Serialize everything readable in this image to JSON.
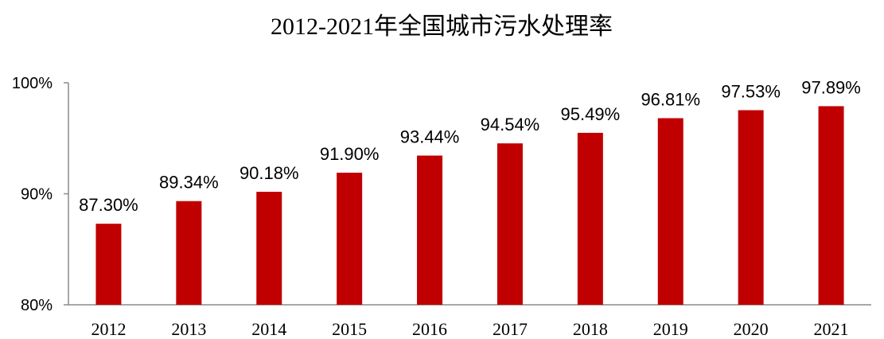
{
  "chart_data": {
    "type": "bar",
    "title": "2012-2021年全国城市污水处理率",
    "categories": [
      "2012",
      "2013",
      "2014",
      "2015",
      "2016",
      "2017",
      "2018",
      "2019",
      "2020",
      "2021"
    ],
    "values": [
      87.3,
      89.34,
      90.18,
      91.9,
      93.44,
      94.54,
      95.49,
      96.81,
      97.53,
      97.89
    ],
    "data_labels": [
      "87.30%",
      "89.34%",
      "90.18%",
      "91.90%",
      "93.44%",
      "94.54%",
      "95.49%",
      "96.81%",
      "97.53%",
      "97.89%"
    ],
    "ylim": [
      80,
      100
    ],
    "yticks": [
      80,
      90,
      100
    ],
    "ytick_labels": [
      "80%",
      "90%",
      "100%"
    ],
    "bar_color": "#c00000",
    "grid": false,
    "legend": "none"
  }
}
